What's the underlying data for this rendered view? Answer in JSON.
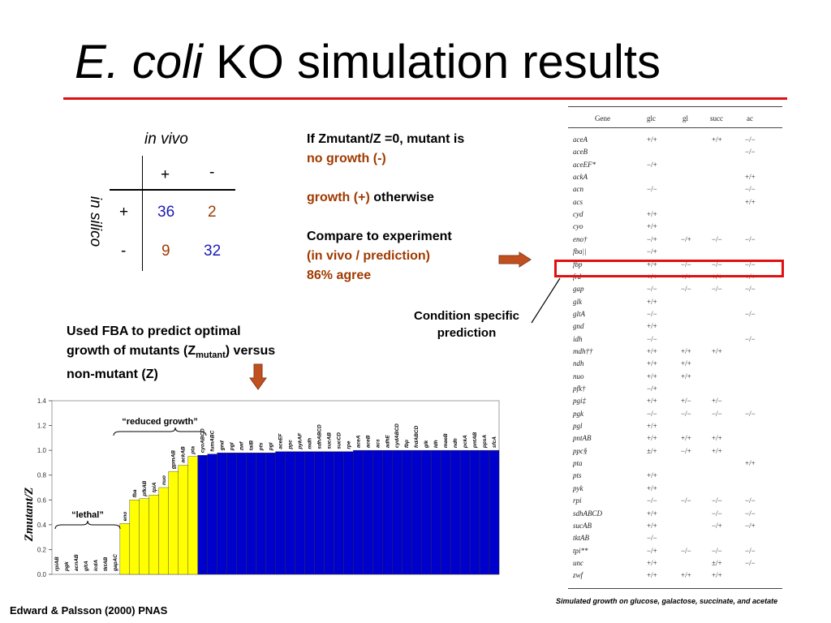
{
  "title": {
    "italic": "E. coli",
    "rest": "KO simulation results"
  },
  "confusion": {
    "col_header": "in vivo",
    "row_header": "in silico",
    "col_labels": [
      "+",
      "-"
    ],
    "row_labels": [
      "+",
      "-"
    ],
    "cells": [
      [
        "36",
        "2"
      ],
      [
        "9",
        "32"
      ]
    ]
  },
  "explanation": {
    "line1": "If Zmutant/Z =0, mutant is",
    "line2": "no growth (-)",
    "line3a": "growth (+)",
    "line3b": " otherwise",
    "line4": "Compare to experiment",
    "line5": "(in vivo / prediction)",
    "line6": "86% agree"
  },
  "condition_note": "Condition specific prediction",
  "fba_note": {
    "line1": "Used FBA to predict optimal",
    "line2a": "growth of mutants (Z",
    "line2sub": "mutant",
    "line2b": ") versus",
    "line3": "non-mutant (Z)"
  },
  "gene_table": {
    "headers": [
      "Gene",
      "glc",
      "gl",
      "succ",
      "ac"
    ],
    "rows": [
      [
        "aceA",
        "+/+",
        "",
        "+/+",
        "−/−"
      ],
      [
        "aceB",
        "",
        "",
        "",
        "−/−"
      ],
      [
        "aceEF*",
        "−/+",
        "",
        "",
        ""
      ],
      [
        "ackA",
        "",
        "",
        "",
        "+/+"
      ],
      [
        "acn",
        "−/−",
        "",
        "",
        "−/−"
      ],
      [
        "acs",
        "",
        "",
        "",
        "+/+"
      ],
      [
        "cyd",
        "+/+",
        "",
        "",
        ""
      ],
      [
        "cyo",
        "+/+",
        "",
        "",
        ""
      ],
      [
        "eno†",
        "−/+",
        "−/+",
        "−/−",
        "−/−"
      ],
      [
        "fba||",
        "−/+",
        "",
        "",
        ""
      ],
      [
        "fbp",
        "+/+",
        "−/−",
        "−/−",
        "−/−"
      ],
      [
        "frd",
        "+/+",
        "+/+",
        "+/+",
        "+/+"
      ],
      [
        "gap",
        "−/−",
        "−/−",
        "−/−",
        "−/−"
      ],
      [
        "glk",
        "+/+",
        "",
        "",
        ""
      ],
      [
        "gltA",
        "−/−",
        "",
        "",
        "−/−"
      ],
      [
        "gnd",
        "+/+",
        "",
        "",
        ""
      ],
      [
        "idh",
        "−/−",
        "",
        "",
        "−/−"
      ],
      [
        "mdh††",
        "+/+",
        "+/+",
        "+/+",
        ""
      ],
      [
        "ndh",
        "+/+",
        "+/+",
        "",
        ""
      ],
      [
        "nuo",
        "+/+",
        "+/+",
        "",
        ""
      ],
      [
        "pfk†",
        "−/+",
        "",
        "",
        ""
      ],
      [
        "pgi‡",
        "+/+",
        "+/−",
        "+/−",
        ""
      ],
      [
        "pgk",
        "−/−",
        "−/−",
        "−/−",
        "−/−"
      ],
      [
        "pgl",
        "+/+",
        "",
        "",
        ""
      ],
      [
        "pntAB",
        "+/+",
        "+/+",
        "+/+",
        ""
      ],
      [
        "ppc§",
        "±/+",
        "−/+",
        "+/+",
        ""
      ],
      [
        "pta",
        "",
        "",
        "",
        "+/+"
      ],
      [
        "pts",
        "+/+",
        "",
        "",
        ""
      ],
      [
        "pyk",
        "+/+",
        "",
        "",
        ""
      ],
      [
        "rpi",
        "−/−",
        "−/−",
        "−/−",
        "−/−"
      ],
      [
        "sdhABCD",
        "+/+",
        "",
        "−/−",
        "−/−"
      ],
      [
        "sucAB",
        "+/+",
        "",
        "−/+",
        "−/+"
      ],
      [
        "tktAB",
        "−/−",
        "",
        "",
        ""
      ],
      [
        "tpi**",
        "−/+",
        "−/−",
        "−/−",
        "−/−"
      ],
      [
        "unc",
        "+/+",
        "",
        "±/+",
        "−/−"
      ],
      [
        "zwf",
        "+/+",
        "+/+",
        "+/+",
        ""
      ]
    ],
    "caption": "Simulated growth on glucose, galactose, succinate, and acetate"
  },
  "colors": {
    "red": "#e01010",
    "brown": "#a03a00",
    "blue": "#1a1ab8",
    "yellow": "#ffff00",
    "chart_blue": "#0000cc",
    "arrow": "#c0501f"
  },
  "chart_data": {
    "type": "bar",
    "title": "",
    "ylabel": "Zmutant/Z",
    "ylim": [
      0,
      1.4
    ],
    "yticks": [
      "0.0",
      "0.2",
      "0.4",
      "0.6",
      "0.8",
      "1.0",
      "1.2",
      "1.4"
    ],
    "annotations": [
      "“lethal”",
      "“reduced growth”"
    ],
    "categories": [
      "rpiAB",
      "pgk",
      "acnAB",
      "gltA",
      "icdA",
      "tktAB",
      "gapAC",
      "eno",
      "fba",
      "pfkAB",
      "tpiA",
      "nuo",
      "gpmAB",
      "ackAB",
      "pta",
      "cyoABCD",
      "fumABC",
      "gnd",
      "pgl",
      "zwf",
      "talB",
      "pts",
      "pgi",
      "aceEF",
      "ppc",
      "pykAF",
      "mdh",
      "sdhABCD",
      "sucAB",
      "sucCD",
      "rpe",
      "aceA",
      "aceB",
      "acs",
      "adhE",
      "cydABCD",
      "fbp",
      "frdABCD",
      "glk",
      "ldh",
      "maeB",
      "ndh",
      "pckA",
      "pntAB",
      "ppsA",
      "sfcA"
    ],
    "values": [
      0,
      0,
      0,
      0,
      0,
      0,
      0,
      0.41,
      0.6,
      0.61,
      0.64,
      0.7,
      0.83,
      0.88,
      0.95,
      0.96,
      0.97,
      0.98,
      0.98,
      0.98,
      0.98,
      0.98,
      0.98,
      0.99,
      0.99,
      0.99,
      0.99,
      0.99,
      0.99,
      0.99,
      0.99,
      1.0,
      1.0,
      1.0,
      1.0,
      1.0,
      1.0,
      1.0,
      1.0,
      1.0,
      1.0,
      1.0,
      1.0,
      1.0,
      1.0,
      1.0
    ]
  },
  "reference": "Edward & Palsson (2000) PNAS"
}
